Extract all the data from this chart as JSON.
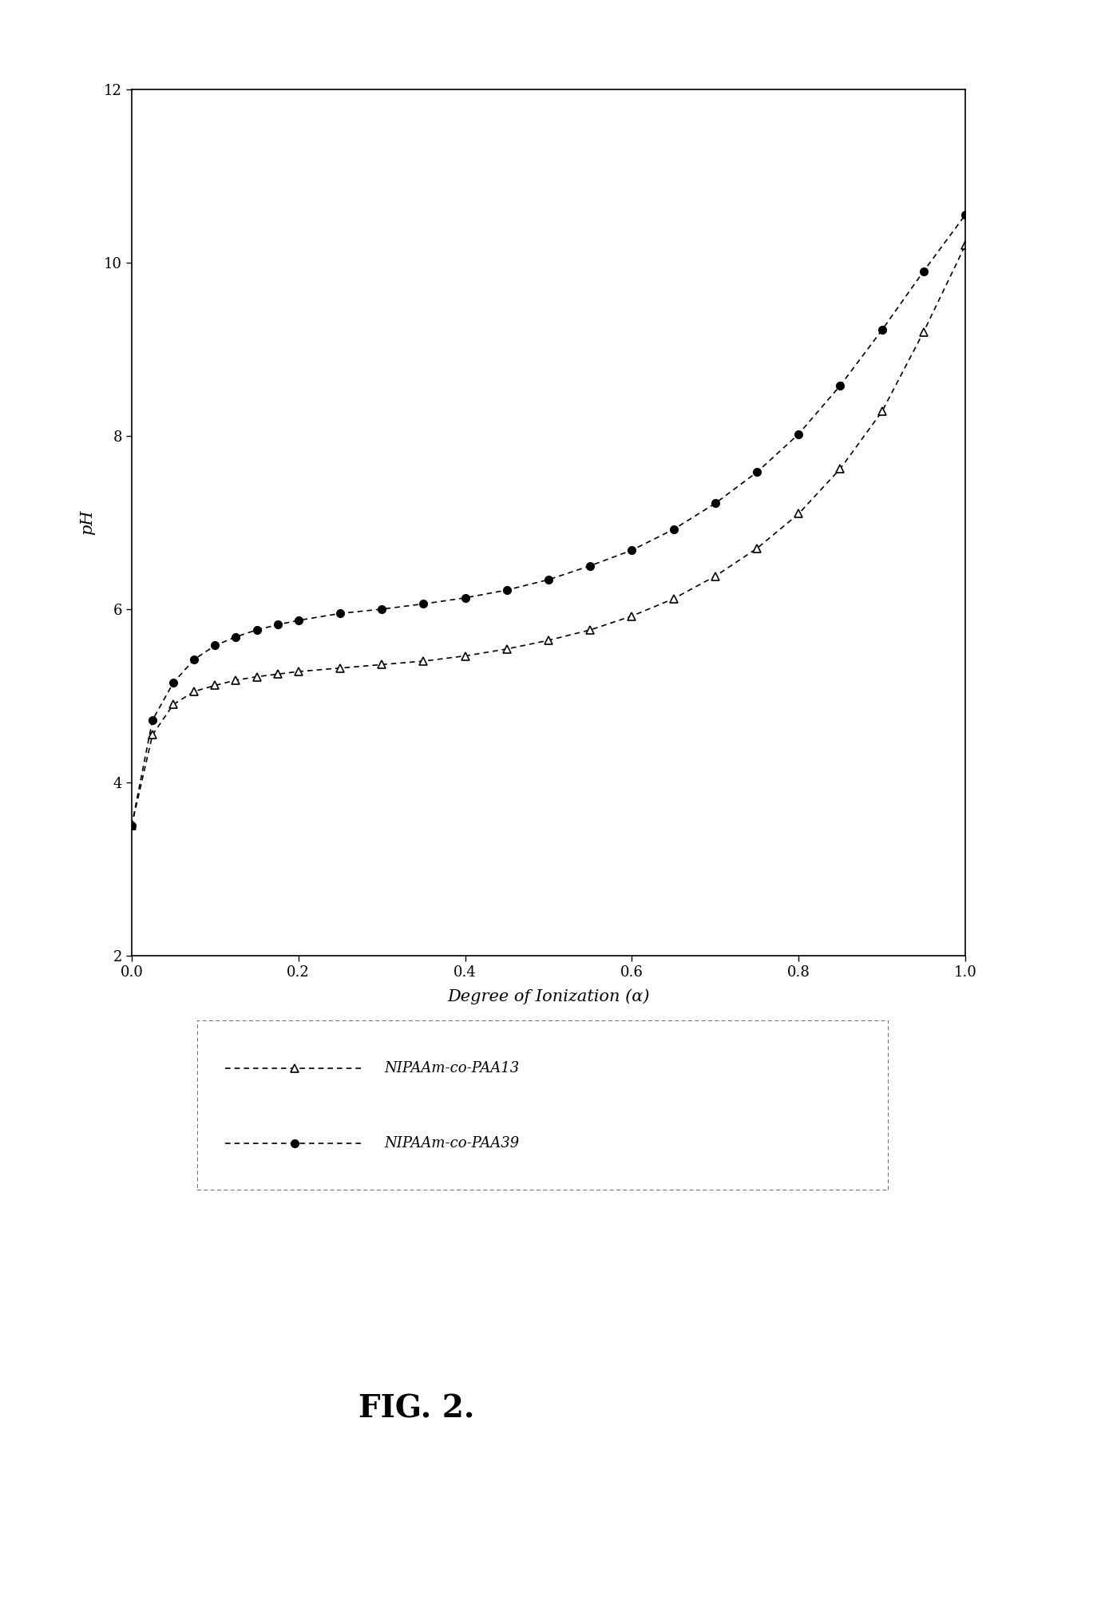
{
  "series1_label": "NIPAAm-co-PAA13",
  "series2_label": "NIPAAm-co-PAA39",
  "series1_x": [
    0.0,
    0.025,
    0.05,
    0.075,
    0.1,
    0.125,
    0.15,
    0.175,
    0.2,
    0.25,
    0.3,
    0.35,
    0.4,
    0.45,
    0.5,
    0.55,
    0.6,
    0.65,
    0.7,
    0.75,
    0.8,
    0.85,
    0.9,
    0.95,
    1.0
  ],
  "series1_y": [
    3.5,
    4.55,
    4.9,
    5.05,
    5.12,
    5.18,
    5.22,
    5.25,
    5.28,
    5.32,
    5.36,
    5.4,
    5.46,
    5.54,
    5.64,
    5.76,
    5.92,
    6.12,
    6.38,
    6.7,
    7.1,
    7.62,
    8.28,
    9.2,
    10.2
  ],
  "series2_x": [
    0.0,
    0.025,
    0.05,
    0.075,
    0.1,
    0.125,
    0.15,
    0.175,
    0.2,
    0.25,
    0.3,
    0.35,
    0.4,
    0.45,
    0.5,
    0.55,
    0.6,
    0.65,
    0.7,
    0.75,
    0.8,
    0.85,
    0.9,
    0.95,
    1.0
  ],
  "series2_y": [
    3.5,
    4.72,
    5.15,
    5.42,
    5.58,
    5.68,
    5.76,
    5.82,
    5.87,
    5.95,
    6.0,
    6.06,
    6.13,
    6.22,
    6.34,
    6.5,
    6.68,
    6.92,
    7.22,
    7.58,
    8.02,
    8.58,
    9.22,
    9.9,
    10.55
  ],
  "xlabel": "Degree of Ionization (α)",
  "ylabel": "pH",
  "xlim": [
    0,
    1
  ],
  "ylim": [
    2,
    12
  ],
  "yticks": [
    2,
    4,
    6,
    8,
    10,
    12
  ],
  "xticks": [
    0,
    0.2,
    0.4,
    0.6,
    0.8,
    1
  ],
  "fig_label": "FIG. 2.",
  "background_color": "#ffffff",
  "line_color": "#000000",
  "marker1": "^",
  "marker2": "o",
  "markersize": 7,
  "linewidth": 1.2
}
